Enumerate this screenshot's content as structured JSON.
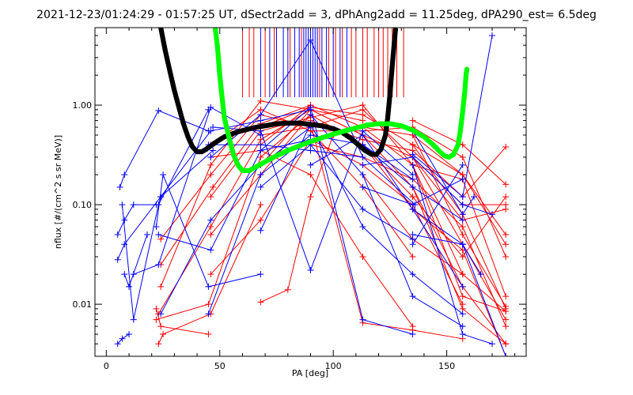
{
  "chart_data": {
    "type": "line",
    "title": "2021-12-23/01:24:29 - 01:57:25 UT, dSectr2add = 3, dPhAng2add = 11.25deg, dPA290_est=   6.5deg",
    "xlabel": "PA [deg]",
    "ylabel": "nflux [#/(cm^2 s sr MeV)]",
    "xlim": [
      -5,
      185
    ],
    "ylim": [
      0.003,
      6.0
    ],
    "yscale": "log",
    "grid": false,
    "xticks": [
      {
        "value": 0,
        "label": "0"
      },
      {
        "value": 50,
        "label": "50"
      },
      {
        "value": 100,
        "label": "100"
      },
      {
        "value": 150,
        "label": "150"
      }
    ],
    "yticks": [
      {
        "value": 0.01,
        "label": "0.01"
      },
      {
        "value": 0.1,
        "label": "0.10"
      },
      {
        "value": 1.0,
        "label": "1.00"
      }
    ],
    "colors": {
      "blue": "#0000ff",
      "red": "#ff0000",
      "black": "#000000",
      "green": "#00ff00"
    },
    "vlines": {
      "ymin": 1.2,
      "ymax": 6.0,
      "blue": [
        68,
        72,
        75,
        78,
        80,
        83,
        85,
        87,
        88,
        89,
        90,
        91,
        92,
        93,
        95,
        97,
        100,
        103,
        106
      ],
      "red": [
        60,
        63,
        65,
        70,
        74,
        81,
        86,
        94,
        98,
        101,
        104,
        108,
        110,
        113,
        115,
        118,
        120,
        122,
        124,
        126,
        128,
        131
      ]
    },
    "blue_series": [
      [
        [
          5,
          0.004
        ],
        [
          7,
          0.0045
        ],
        [
          10,
          0.005
        ]
      ],
      [
        [
          8,
          0.02
        ],
        [
          10,
          0.015
        ],
        [
          18,
          0.05
        ]
      ],
      [
        [
          5,
          0.05
        ],
        [
          8,
          0.07
        ],
        [
          12,
          0.1
        ],
        [
          22,
          0.1
        ]
      ],
      [
        [
          6,
          0.15
        ],
        [
          8,
          0.2
        ],
        [
          23,
          0.88
        ],
        [
          45,
          0.55
        ]
      ],
      [
        [
          7,
          0.1
        ],
        [
          12,
          0.007
        ],
        [
          23,
          0.1
        ],
        [
          45,
          0.9
        ]
      ],
      [
        [
          5,
          0.028
        ],
        [
          8,
          0.04
        ],
        [
          24,
          0.12
        ],
        [
          47,
          0.35
        ]
      ],
      [
        [
          12,
          0.02
        ],
        [
          23,
          0.025
        ],
        [
          46,
          0.95
        ],
        [
          68,
          0.5
        ]
      ],
      [
        [
          22,
          0.06
        ],
        [
          25,
          0.2
        ],
        [
          45,
          0.015
        ],
        [
          68,
          0.02
        ]
      ],
      [
        [
          23,
          0.05
        ],
        [
          46,
          0.035
        ],
        [
          68,
          0.35
        ],
        [
          90,
          0.45
        ]
      ],
      [
        [
          24,
          0.008
        ],
        [
          46,
          0.07
        ],
        [
          68,
          0.25
        ],
        [
          90,
          0.6
        ]
      ],
      [
        [
          24,
          0.12
        ],
        [
          46,
          0.55
        ],
        [
          68,
          0.7
        ],
        [
          90,
          0.9
        ]
      ],
      [
        [
          45,
          0.4
        ],
        [
          68,
          0.4
        ],
        [
          90,
          0.35
        ],
        [
          113,
          0.3
        ]
      ],
      [
        [
          45,
          0.008
        ],
        [
          68,
          0.2
        ],
        [
          90,
          0.5
        ],
        [
          113,
          0.4
        ],
        [
          135,
          0.18
        ]
      ],
      [
        [
          46,
          0.3
        ],
        [
          68,
          0.8
        ],
        [
          90,
          4.5
        ],
        [
          113,
          0.3
        ],
        [
          136,
          0.1
        ]
      ],
      [
        [
          47,
          0.6
        ],
        [
          68,
          0.55
        ],
        [
          90,
          0.022
        ],
        [
          113,
          0.55
        ],
        [
          135,
          0.2
        ]
      ],
      [
        [
          68,
          0.15
        ],
        [
          90,
          0.4
        ],
        [
          113,
          0.09
        ],
        [
          135,
          0.045
        ]
      ],
      [
        [
          68,
          0.35
        ],
        [
          90,
          0.95
        ],
        [
          113,
          0.007
        ],
        [
          135,
          0.005
        ]
      ],
      [
        [
          68,
          0.055
        ],
        [
          90,
          0.65
        ],
        [
          113,
          0.06
        ],
        [
          135,
          0.02
        ],
        [
          157,
          0.008
        ]
      ],
      [
        [
          90,
          0.25
        ],
        [
          113,
          0.5
        ],
        [
          135,
          0.09
        ],
        [
          157,
          0.04
        ],
        [
          176,
          0.003
        ]
      ],
      [
        [
          90,
          0.8
        ],
        [
          113,
          0.2
        ],
        [
          135,
          0.012
        ],
        [
          157,
          0.006
        ]
      ],
      [
        [
          113,
          0.25
        ],
        [
          135,
          0.3
        ],
        [
          157,
          0.1
        ]
      ],
      [
        [
          113,
          0.15
        ],
        [
          135,
          0.1
        ],
        [
          157,
          0.18
        ]
      ],
      [
        [
          135,
          0.05
        ],
        [
          157,
          0.04
        ],
        [
          165,
          0.02
        ]
      ],
      [
        [
          135,
          0.25
        ],
        [
          157,
          0.005
        ],
        [
          170,
          0.004
        ]
      ],
      [
        [
          135,
          0.09
        ],
        [
          157,
          0.015
        ]
      ],
      [
        [
          135,
          0.55
        ],
        [
          157,
          0.08
        ],
        [
          162,
          0.12
        ]
      ],
      [
        [
          135,
          0.04
        ],
        [
          157,
          0.25
        ]
      ],
      [
        [
          157,
          0.1
        ],
        [
          170,
          0.08
        ]
      ],
      [
        [
          135,
          0.32
        ],
        [
          157,
          0.12
        ],
        [
          170,
          5.0
        ]
      ],
      [
        [
          113,
          0.4
        ],
        [
          135,
          0.15
        ],
        [
          157,
          0.07
        ]
      ]
    ],
    "red_series": [
      [
        [
          22,
          0.009
        ],
        [
          24,
          0.006
        ],
        [
          45,
          0.005
        ]
      ],
      [
        [
          23,
          0.004
        ],
        [
          25,
          0.005
        ],
        [
          46,
          0.008
        ],
        [
          68,
          0.1
        ]
      ],
      [
        [
          22,
          0.007
        ],
        [
          45,
          0.01
        ],
        [
          68,
          0.3
        ],
        [
          90,
          0.8
        ]
      ],
      [
        [
          24,
          0.045
        ],
        [
          46,
          0.2
        ],
        [
          68,
          0.8
        ],
        [
          90,
          0.6
        ]
      ],
      [
        [
          24,
          0.025
        ],
        [
          47,
          0.15
        ],
        [
          68,
          0.65
        ],
        [
          90,
          1.0
        ]
      ],
      [
        [
          23,
          0.008
        ],
        [
          46,
          0.06
        ],
        [
          68,
          0.45
        ],
        [
          90,
          0.9
        ],
        [
          113,
          0.5
        ]
      ],
      [
        [
          24,
          0.015
        ],
        [
          46,
          0.25
        ],
        [
          68,
          1.1
        ],
        [
          90,
          0.9
        ],
        [
          113,
          0.7
        ]
      ],
      [
        [
          46,
          0.4
        ],
        [
          68,
          0.9
        ],
        [
          90,
          0.55
        ],
        [
          113,
          0.15
        ],
        [
          135,
          0.03
        ]
      ],
      [
        [
          46,
          0.05
        ],
        [
          68,
          0.2
        ],
        [
          90,
          0.8
        ],
        [
          113,
          0.4
        ],
        [
          135,
          0.12
        ]
      ],
      [
        [
          46,
          0.3
        ],
        [
          68,
          0.35
        ],
        [
          90,
          0.2
        ],
        [
          113,
          0.03
        ],
        [
          135,
          0.006
        ]
      ],
      [
        [
          46,
          0.12
        ],
        [
          68,
          0.55
        ],
        [
          90,
          0.75
        ],
        [
          113,
          1.0
        ],
        [
          135,
          0.25
        ],
        [
          157,
          0.02
        ]
      ],
      [
        [
          46,
          0.02
        ],
        [
          68,
          0.07
        ],
        [
          90,
          0.45
        ],
        [
          113,
          0.25
        ],
        [
          135,
          0.1
        ],
        [
          157,
          0.01
        ]
      ],
      [
        [
          68,
          0.0105
        ],
        [
          80,
          0.014
        ],
        [
          90,
          0.12
        ],
        [
          100,
          0.5
        ]
      ],
      [
        [
          68,
          0.6
        ],
        [
          90,
          0.95
        ],
        [
          113,
          0.8
        ],
        [
          135,
          0.4
        ],
        [
          157,
          0.08
        ],
        [
          176,
          0.009
        ]
      ],
      [
        [
          68,
          0.4
        ],
        [
          90,
          1.0
        ],
        [
          113,
          0.6
        ],
        [
          135,
          0.5
        ],
        [
          157,
          0.2
        ],
        [
          176,
          0.05
        ]
      ],
      [
        [
          68,
          0.5
        ],
        [
          90,
          0.6
        ],
        [
          113,
          0.9
        ],
        [
          135,
          0.3
        ],
        [
          157,
          0.04
        ],
        [
          176,
          0.007
        ]
      ],
      [
        [
          68,
          0.25
        ],
        [
          90,
          0.9
        ],
        [
          113,
          0.5
        ],
        [
          135,
          0.15
        ],
        [
          157,
          0.015
        ],
        [
          176,
          0.004
        ]
      ],
      [
        [
          90,
          0.7
        ],
        [
          113,
          0.45
        ],
        [
          135,
          0.35
        ],
        [
          157,
          0.12
        ],
        [
          176,
          0.38
        ]
      ],
      [
        [
          90,
          0.4
        ],
        [
          113,
          0.3
        ],
        [
          135,
          0.18
        ],
        [
          157,
          0.06
        ],
        [
          176,
          0.006
        ]
      ],
      [
        [
          90,
          0.55
        ],
        [
          113,
          0.55
        ],
        [
          135,
          0.6
        ],
        [
          157,
          0.3
        ],
        [
          176,
          0.03
        ]
      ],
      [
        [
          90,
          0.65
        ],
        [
          113,
          0.0065
        ],
        [
          135,
          0.0055
        ],
        [
          157,
          0.0045
        ]
      ],
      [
        [
          113,
          0.4
        ],
        [
          135,
          0.09
        ],
        [
          157,
          0.035
        ],
        [
          176,
          0.003
        ]
      ],
      [
        [
          113,
          0.2
        ],
        [
          135,
          0.045
        ],
        [
          157,
          0.02
        ],
        [
          176,
          0.0085
        ]
      ],
      [
        [
          113,
          0.6
        ],
        [
          135,
          0.25
        ],
        [
          157,
          0.18
        ],
        [
          176,
          0.012
        ]
      ],
      [
        [
          113,
          0.5
        ],
        [
          135,
          0.3
        ],
        [
          157,
          0.1
        ],
        [
          176,
          0.1
        ]
      ],
      [
        [
          135,
          0.7
        ],
        [
          157,
          0.4
        ],
        [
          176,
          0.16
        ]
      ],
      [
        [
          135,
          0.5
        ],
        [
          157,
          0.05
        ],
        [
          176,
          0.0095
        ]
      ],
      [
        [
          135,
          0.15
        ],
        [
          157,
          0.009
        ],
        [
          176,
          0.004
        ]
      ],
      [
        [
          135,
          0.3
        ],
        [
          157,
          0.07
        ],
        [
          176,
          0.09
        ]
      ],
      [
        [
          135,
          0.4
        ],
        [
          157,
          0.2
        ],
        [
          176,
          0.04
        ]
      ],
      [
        [
          135,
          0.25
        ],
        [
          157,
          0.012
        ],
        [
          176,
          0.0085
        ]
      ],
      [
        [
          135,
          0.12
        ],
        [
          157,
          0.03
        ],
        [
          176,
          0.12
        ]
      ]
    ],
    "black_curve": [
      [
        24,
        6.0
      ],
      [
        26,
        3.5
      ],
      [
        28,
        2.2
      ],
      [
        30,
        1.4
      ],
      [
        32,
        0.95
      ],
      [
        34,
        0.65
      ],
      [
        36,
        0.48
      ],
      [
        38,
        0.38
      ],
      [
        40,
        0.34
      ],
      [
        42,
        0.34
      ],
      [
        44,
        0.36
      ],
      [
        46,
        0.39
      ],
      [
        48,
        0.42
      ],
      [
        50,
        0.45
      ],
      [
        52,
        0.48
      ],
      [
        55,
        0.51
      ],
      [
        58,
        0.54
      ],
      [
        62,
        0.57
      ],
      [
        66,
        0.6
      ],
      [
        70,
        0.62
      ],
      [
        75,
        0.65
      ],
      [
        80,
        0.66
      ],
      [
        85,
        0.66
      ],
      [
        90,
        0.64
      ],
      [
        95,
        0.62
      ],
      [
        100,
        0.58
      ],
      [
        104,
        0.53
      ],
      [
        108,
        0.46
      ],
      [
        111,
        0.4
      ],
      [
        114,
        0.35
      ],
      [
        117,
        0.32
      ],
      [
        119,
        0.32
      ],
      [
        121,
        0.36
      ],
      [
        123,
        0.5
      ],
      [
        124,
        0.75
      ],
      [
        125,
        1.3
      ],
      [
        126,
        2.5
      ],
      [
        127,
        4.5
      ],
      [
        127.5,
        6.0
      ]
    ],
    "green_curve": [
      [
        48,
        6.0
      ],
      [
        49,
        3.8
      ],
      [
        50,
        2.0
      ],
      [
        51,
        1.2
      ],
      [
        52,
        0.75
      ],
      [
        54,
        0.48
      ],
      [
        56,
        0.32
      ],
      [
        58,
        0.25
      ],
      [
        60,
        0.22
      ],
      [
        63,
        0.22
      ],
      [
        66,
        0.24
      ],
      [
        70,
        0.27
      ],
      [
        75,
        0.31
      ],
      [
        80,
        0.35
      ],
      [
        85,
        0.39
      ],
      [
        90,
        0.43
      ],
      [
        95,
        0.47
      ],
      [
        100,
        0.51
      ],
      [
        105,
        0.55
      ],
      [
        110,
        0.59
      ],
      [
        115,
        0.63
      ],
      [
        120,
        0.65
      ],
      [
        125,
        0.65
      ],
      [
        130,
        0.62
      ],
      [
        135,
        0.56
      ],
      [
        140,
        0.48
      ],
      [
        144,
        0.4
      ],
      [
        147,
        0.34
      ],
      [
        149,
        0.31
      ],
      [
        151,
        0.3
      ],
      [
        153,
        0.32
      ],
      [
        155,
        0.4
      ],
      [
        156,
        0.55
      ],
      [
        157,
        0.85
      ],
      [
        158,
        1.4
      ],
      [
        158.5,
        2.0
      ],
      [
        159,
        2.4
      ]
    ]
  }
}
